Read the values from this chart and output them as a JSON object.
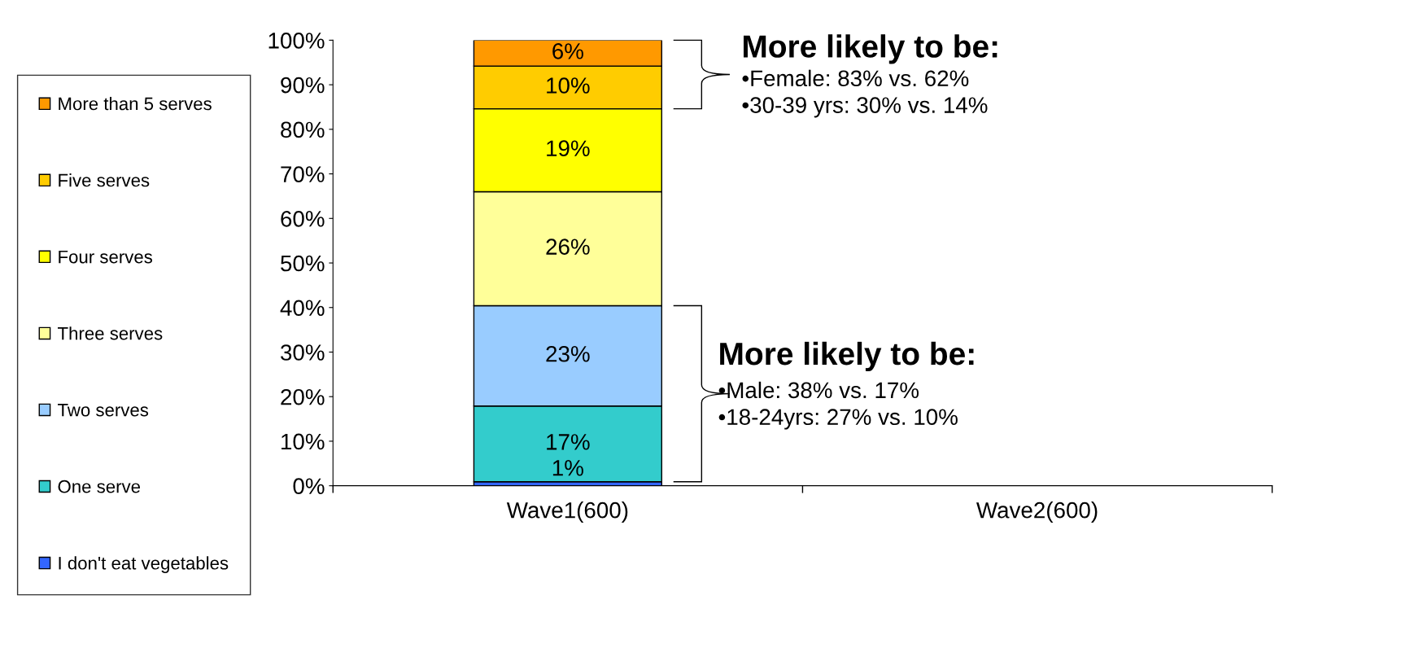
{
  "chart_data": {
    "type": "bar",
    "stacked": true,
    "categories": [
      "Wave1(600)",
      "Wave2(600)"
    ],
    "series": [
      {
        "name": "I don't eat vegetables",
        "color": "#3366ff",
        "values": [
          0.9,
          null
        ],
        "value_labels": [
          "1%",
          null
        ]
      },
      {
        "name": "One serve",
        "color": "#33cccc",
        "values": [
          17,
          null
        ],
        "value_labels": [
          "17%",
          null
        ]
      },
      {
        "name": "Two serves",
        "color": "#99ccff",
        "values": [
          22.5,
          null
        ],
        "value_labels": [
          "23%",
          null
        ]
      },
      {
        "name": "Three serves",
        "color": "#ffff99",
        "values": [
          25.6,
          null
        ],
        "value_labels": [
          "26%",
          null
        ]
      },
      {
        "name": "Four serves",
        "color": "#ffff00",
        "values": [
          18.6,
          null
        ],
        "value_labels": [
          "19%",
          null
        ]
      },
      {
        "name": "Five serves",
        "color": "#ffcc00",
        "values": [
          9.6,
          null
        ],
        "value_labels": [
          "10%",
          null
        ]
      },
      {
        "name": "More than 5 serves",
        "color": "#ff9900",
        "values": [
          5.8,
          null
        ],
        "value_labels": [
          "6%",
          null
        ]
      }
    ],
    "ylim": [
      0,
      100
    ],
    "yticks": [
      {
        "value": 0,
        "label": "0%"
      },
      {
        "value": 10,
        "label": "10%"
      },
      {
        "value": 20,
        "label": "20%"
      },
      {
        "value": 30,
        "label": "30%"
      },
      {
        "value": 40,
        "label": "40%"
      },
      {
        "value": 50,
        "label": "50%"
      },
      {
        "value": 60,
        "label": "60%"
      },
      {
        "value": 70,
        "label": "70%"
      },
      {
        "value": 80,
        "label": "80%"
      },
      {
        "value": 90,
        "label": "90%"
      },
      {
        "value": 100,
        "label": "100%"
      }
    ],
    "grid": false,
    "legend": "left",
    "annotations": [
      "More likely to be:",
      "•Female: 83% vs. 62%",
      "•30-39 yrs: 30% vs. 14%",
      "More likely to be:",
      "•Male: 38% vs. 17%",
      "•18-24yrs: 27% vs. 10%"
    ]
  }
}
